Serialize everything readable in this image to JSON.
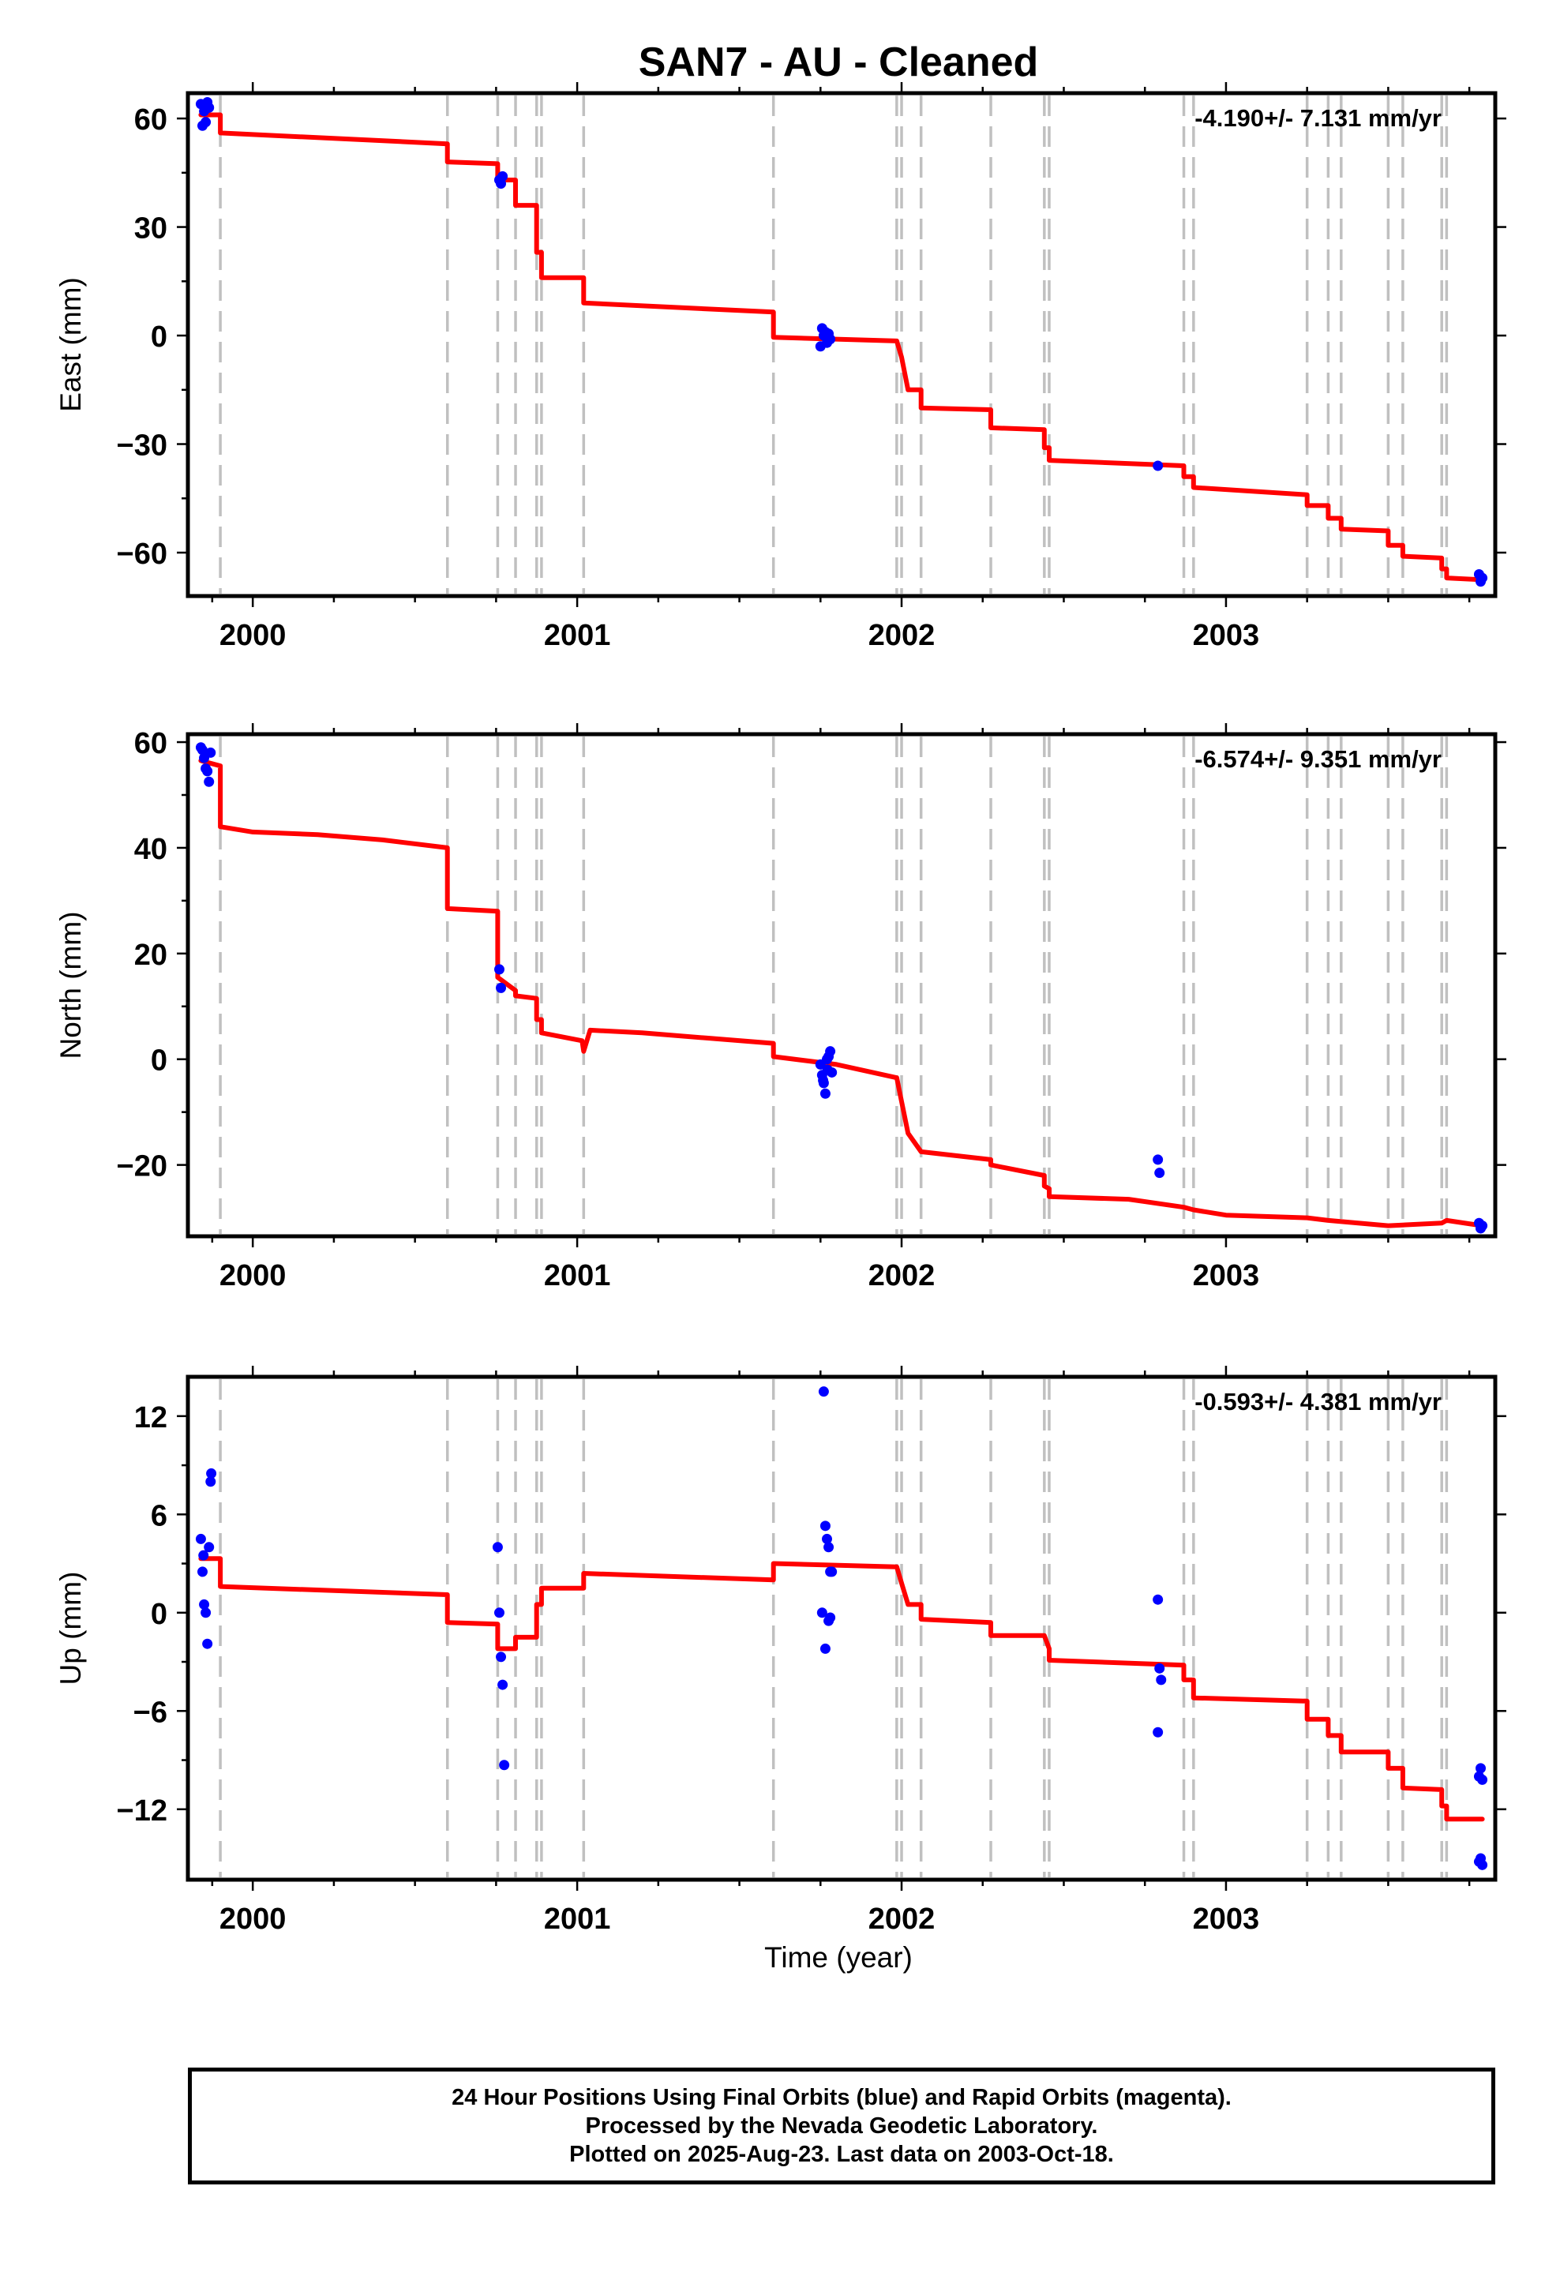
{
  "chart_data": {
    "title": "SAN7  - AU - Cleaned",
    "xlabel": "Time (year)",
    "x_tick_labels": [
      "2000",
      "2001",
      "2002",
      "2003"
    ],
    "x_ticks": [
      2000,
      2001,
      2002,
      2003
    ],
    "xlim": [
      1999.8,
      2003.83
    ],
    "colors": {
      "model": "#ff0000",
      "final_orbits": "#0000ff",
      "rapid_orbits": "#ff00ff",
      "event_lines": "#c0c0c0"
    },
    "event_lines": [
      1999.9,
      2000.6,
      2000.755,
      2000.81,
      2000.875,
      2000.89,
      2001.02,
      2001.605,
      2001.985,
      2002.0,
      2002.06,
      2002.275,
      2002.44,
      2002.455,
      2002.87,
      2002.9,
      2003.25,
      2003.315,
      2003.355,
      2003.5,
      2003.545,
      2003.665,
      2003.68
    ],
    "panels": [
      {
        "type": "scatter",
        "ylabel": "East (mm)",
        "ylim": [
          -72,
          67
        ],
        "yticks": [
          60,
          30,
          0,
          -30,
          -60
        ],
        "y_tick_labels": [
          "60",
          "30",
          "0",
          "−30",
          "−60"
        ],
        "rate_label": "-4.190+/- 7.131 mm/yr",
        "points": [
          [
            1999.84,
            64
          ],
          [
            1999.85,
            62
          ],
          [
            1999.855,
            59
          ],
          [
            1999.845,
            58
          ],
          [
            1999.86,
            64.5
          ],
          [
            1999.865,
            63
          ],
          [
            2000.76,
            43
          ],
          [
            2000.765,
            42
          ],
          [
            2000.77,
            44
          ],
          [
            2001.755,
            2
          ],
          [
            2001.76,
            0
          ],
          [
            2001.77,
            -2
          ],
          [
            2001.765,
            1
          ],
          [
            2001.775,
            0.5
          ],
          [
            2001.75,
            -3
          ],
          [
            2001.78,
            -1
          ],
          [
            2002.79,
            -36
          ],
          [
            2003.78,
            -66
          ],
          [
            2003.785,
            -68
          ],
          [
            2003.79,
            -67
          ]
        ],
        "model": [
          [
            1999.84,
            61
          ],
          [
            1999.9,
            61
          ],
          [
            1999.9,
            56
          ],
          [
            2000.6,
            53
          ],
          [
            2000.6,
            48
          ],
          [
            2000.755,
            47.5
          ],
          [
            2000.755,
            43
          ],
          [
            2000.81,
            43
          ],
          [
            2000.81,
            36
          ],
          [
            2000.875,
            36
          ],
          [
            2000.875,
            23
          ],
          [
            2000.89,
            23
          ],
          [
            2000.89,
            16
          ],
          [
            2001.02,
            16
          ],
          [
            2001.02,
            9
          ],
          [
            2001.605,
            6.5
          ],
          [
            2001.605,
            -0.5
          ],
          [
            2001.985,
            -1.5
          ],
          [
            2002.0,
            -6
          ],
          [
            2002.02,
            -15
          ],
          [
            2002.06,
            -15
          ],
          [
            2002.06,
            -20
          ],
          [
            2002.275,
            -20.5
          ],
          [
            2002.275,
            -25.5
          ],
          [
            2002.44,
            -26
          ],
          [
            2002.44,
            -31
          ],
          [
            2002.455,
            -31
          ],
          [
            2002.455,
            -34.5
          ],
          [
            2002.87,
            -36
          ],
          [
            2002.87,
            -39
          ],
          [
            2002.9,
            -39
          ],
          [
            2002.9,
            -42
          ],
          [
            2003.25,
            -44
          ],
          [
            2003.25,
            -47
          ],
          [
            2003.315,
            -47
          ],
          [
            2003.315,
            -50.5
          ],
          [
            2003.355,
            -50.5
          ],
          [
            2003.355,
            -53.5
          ],
          [
            2003.5,
            -54
          ],
          [
            2003.5,
            -58
          ],
          [
            2003.545,
            -58
          ],
          [
            2003.545,
            -61
          ],
          [
            2003.665,
            -61.5
          ],
          [
            2003.665,
            -64.5
          ],
          [
            2003.68,
            -64.5
          ],
          [
            2003.68,
            -67
          ],
          [
            2003.79,
            -67.5
          ]
        ]
      },
      {
        "type": "scatter",
        "ylabel": "North (mm)",
        "ylim": [
          -33.5,
          61.5
        ],
        "yticks": [
          60,
          40,
          20,
          0,
          -20
        ],
        "y_tick_labels": [
          "60",
          "40",
          "20",
          "0",
          "−20"
        ],
        "rate_label": "-6.574+/- 9.351 mm/yr",
        "points": [
          [
            1999.84,
            59
          ],
          [
            1999.845,
            58.5
          ],
          [
            1999.85,
            57
          ],
          [
            1999.855,
            55
          ],
          [
            1999.86,
            54.5
          ],
          [
            1999.865,
            52.5
          ],
          [
            1999.87,
            58
          ],
          [
            2000.76,
            17
          ],
          [
            2000.765,
            13.5
          ],
          [
            2001.75,
            -1
          ],
          [
            2001.755,
            -3
          ],
          [
            2001.76,
            -4.5
          ],
          [
            2001.765,
            -6.5
          ],
          [
            2001.77,
            0
          ],
          [
            2001.775,
            0.5
          ],
          [
            2001.78,
            1.5
          ],
          [
            2001.785,
            -2.5
          ],
          [
            2001.758,
            -4
          ],
          [
            2001.772,
            -2
          ],
          [
            2002.79,
            -19
          ],
          [
            2002.795,
            -21.5
          ],
          [
            2003.78,
            -31
          ],
          [
            2003.785,
            -32
          ],
          [
            2003.79,
            -31.5
          ]
        ],
        "model": [
          [
            1999.84,
            56.5
          ],
          [
            1999.9,
            55.5
          ],
          [
            1999.9,
            44
          ],
          [
            2000.0,
            43
          ],
          [
            2000.2,
            42.5
          ],
          [
            2000.4,
            41.5
          ],
          [
            2000.6,
            40
          ],
          [
            2000.6,
            28.5
          ],
          [
            2000.755,
            28
          ],
          [
            2000.755,
            15.5
          ],
          [
            2000.81,
            13
          ],
          [
            2000.81,
            12
          ],
          [
            2000.875,
            11.5
          ],
          [
            2000.875,
            7.5
          ],
          [
            2000.89,
            7.5
          ],
          [
            2000.89,
            5
          ],
          [
            2001.015,
            3.5
          ],
          [
            2001.02,
            1.5
          ],
          [
            2001.04,
            5.5
          ],
          [
            2001.2,
            5
          ],
          [
            2001.4,
            4
          ],
          [
            2001.605,
            3
          ],
          [
            2001.605,
            0.5
          ],
          [
            2001.8,
            -1
          ],
          [
            2001.985,
            -3.5
          ],
          [
            2002.0,
            -8
          ],
          [
            2002.02,
            -14
          ],
          [
            2002.06,
            -17.5
          ],
          [
            2002.275,
            -19
          ],
          [
            2002.275,
            -20
          ],
          [
            2002.44,
            -22
          ],
          [
            2002.44,
            -24
          ],
          [
            2002.455,
            -24.5
          ],
          [
            2002.455,
            -26
          ],
          [
            2002.7,
            -26.5
          ],
          [
            2002.87,
            -28
          ],
          [
            2002.9,
            -28.5
          ],
          [
            2003.0,
            -29.5
          ],
          [
            2003.25,
            -30
          ],
          [
            2003.315,
            -30.5
          ],
          [
            2003.5,
            -31.5
          ],
          [
            2003.665,
            -31
          ],
          [
            2003.68,
            -30.5
          ],
          [
            2003.79,
            -31.5
          ]
        ]
      },
      {
        "type": "scatter",
        "ylabel": "Up (mm)",
        "ylim": [
          -16.3,
          14.4
        ],
        "yticks": [
          12,
          6,
          0,
          -6,
          -12
        ],
        "y_tick_labels": [
          "12",
          "6",
          "0",
          "−6",
          "−12"
        ],
        "rate_label": "-0.593+/- 4.381 mm/yr",
        "points": [
          [
            1999.84,
            4.5
          ],
          [
            1999.845,
            2.5
          ],
          [
            1999.85,
            0.5
          ],
          [
            1999.855,
            0
          ],
          [
            1999.86,
            -1.9
          ],
          [
            1999.865,
            4
          ],
          [
            1999.87,
            8
          ],
          [
            1999.872,
            8.5
          ],
          [
            1999.848,
            3.5
          ],
          [
            2000.755,
            4
          ],
          [
            2000.76,
            0
          ],
          [
            2000.765,
            -2.7
          ],
          [
            2000.77,
            -4.4
          ],
          [
            2000.775,
            -9.3
          ],
          [
            2001.76,
            13.5
          ],
          [
            2001.765,
            5.3
          ],
          [
            2001.77,
            4.5
          ],
          [
            2001.775,
            4
          ],
          [
            2001.78,
            2.5
          ],
          [
            2001.785,
            2.5
          ],
          [
            2001.755,
            0
          ],
          [
            2001.775,
            -0.5
          ],
          [
            2001.78,
            -0.3
          ],
          [
            2001.765,
            -2.2
          ],
          [
            2002.79,
            0.8
          ],
          [
            2002.795,
            -3.4
          ],
          [
            2002.8,
            -4.1
          ],
          [
            2002.79,
            -7.3
          ],
          [
            2003.78,
            -10
          ],
          [
            2003.785,
            -9.5
          ],
          [
            2003.79,
            -10.2
          ],
          [
            2003.78,
            -15.2
          ],
          [
            2003.785,
            -15
          ],
          [
            2003.79,
            -15.4
          ]
        ],
        "model": [
          [
            1999.84,
            3.3
          ],
          [
            1999.9,
            3.3
          ],
          [
            1999.9,
            1.6
          ],
          [
            2000.6,
            1.1
          ],
          [
            2000.6,
            -0.6
          ],
          [
            2000.755,
            -0.7
          ],
          [
            2000.755,
            -2.2
          ],
          [
            2000.81,
            -2.2
          ],
          [
            2000.81,
            -1.5
          ],
          [
            2000.875,
            -1.5
          ],
          [
            2000.875,
            0.5
          ],
          [
            2000.89,
            0.5
          ],
          [
            2000.89,
            1.5
          ],
          [
            2001.02,
            1.5
          ],
          [
            2001.02,
            2.4
          ],
          [
            2001.605,
            2.0
          ],
          [
            2001.605,
            3.0
          ],
          [
            2001.985,
            2.8
          ],
          [
            2002.0,
            1.8
          ],
          [
            2002.02,
            0.5
          ],
          [
            2002.06,
            0.5
          ],
          [
            2002.06,
            -0.4
          ],
          [
            2002.275,
            -0.6
          ],
          [
            2002.275,
            -1.4
          ],
          [
            2002.44,
            -1.4
          ],
          [
            2002.455,
            -2.2
          ],
          [
            2002.455,
            -2.9
          ],
          [
            2002.87,
            -3.2
          ],
          [
            2002.87,
            -4.1
          ],
          [
            2002.9,
            -4.1
          ],
          [
            2002.9,
            -5.2
          ],
          [
            2003.25,
            -5.4
          ],
          [
            2003.25,
            -6.5
          ],
          [
            2003.315,
            -6.5
          ],
          [
            2003.315,
            -7.5
          ],
          [
            2003.355,
            -7.5
          ],
          [
            2003.355,
            -8.5
          ],
          [
            2003.5,
            -8.5
          ],
          [
            2003.5,
            -9.5
          ],
          [
            2003.545,
            -9.5
          ],
          [
            2003.545,
            -10.7
          ],
          [
            2003.665,
            -10.8
          ],
          [
            2003.665,
            -11.8
          ],
          [
            2003.68,
            -11.8
          ],
          [
            2003.68,
            -12.6
          ],
          [
            2003.79,
            -12.6
          ]
        ]
      }
    ]
  },
  "footer": {
    "line1": "24 Hour Positions Using Final Orbits (blue) and Rapid Orbits (magenta).",
    "line2": "Processed by the Nevada Geodetic Laboratory.",
    "line3": "Plotted on 2025-Aug-23. Last data on 2003-Oct-18."
  }
}
